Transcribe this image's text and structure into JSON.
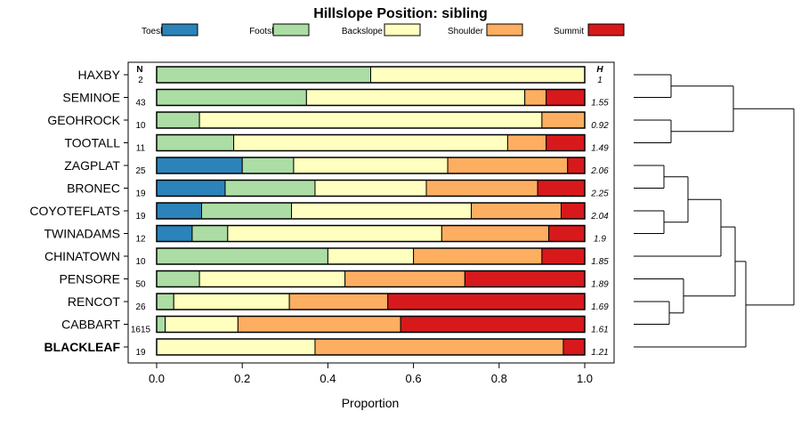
{
  "chart_data": {
    "type": "bar",
    "subtype": "stacked-horizontal-proportion",
    "title": "Hillslope Position: sibling",
    "xlabel": "Proportion",
    "ylabel": "",
    "xlim": [
      0,
      1
    ],
    "x_ticks": [
      "0.0",
      "0.2",
      "0.4",
      "0.6",
      "0.8",
      "1.0"
    ],
    "x_tick_values": [
      0.0,
      0.2,
      0.4,
      0.6,
      0.8,
      1.0
    ],
    "n_header": "N",
    "h_header": "H",
    "legend": [
      {
        "name": "Toeslope",
        "color": "#2b83ba"
      },
      {
        "name": "Footslope",
        "color": "#abdda4"
      },
      {
        "name": "Backslope",
        "color": "#ffffbf"
      },
      {
        "name": "Shoulder",
        "color": "#fdae61"
      },
      {
        "name": "Summit",
        "color": "#d7191c"
      }
    ],
    "categories": [
      "HAXBY",
      "SEMINOE",
      "GEOHROCK",
      "TOOTALL",
      "ZAGPLAT",
      "BRONEC",
      "COYOTEFLATS",
      "TWINADAMS",
      "CHINATOWN",
      "PENSORE",
      "RENCOT",
      "CABBART",
      "BLACKLEAF"
    ],
    "highlight": "BLACKLEAF",
    "n": [
      "2",
      "43",
      "10",
      "11",
      "25",
      "19",
      "19",
      "12",
      "10",
      "50",
      "26",
      "1615",
      "19"
    ],
    "h": [
      "1",
      "1.55",
      "0.92",
      "1.49",
      "2.06",
      "2.25",
      "2.04",
      "1.9",
      "1.85",
      "1.89",
      "1.69",
      "1.61",
      "1.21"
    ],
    "series": [
      {
        "name": "Toeslope",
        "values": [
          0,
          0,
          0,
          0,
          0.2,
          0.16,
          0.105,
          0.083,
          0,
          0,
          0,
          0,
          0
        ]
      },
      {
        "name": "Footslope",
        "values": [
          0.5,
          0.35,
          0.1,
          0.18,
          0.12,
          0.21,
          0.21,
          0.083,
          0.4,
          0.1,
          0.04,
          0.02,
          0
        ]
      },
      {
        "name": "Backslope",
        "values": [
          0.5,
          0.51,
          0.8,
          0.64,
          0.36,
          0.26,
          0.42,
          0.5,
          0.2,
          0.34,
          0.27,
          0.17,
          0.37
        ]
      },
      {
        "name": "Shoulder",
        "values": [
          0,
          0.05,
          0.1,
          0.09,
          0.28,
          0.26,
          0.21,
          0.25,
          0.3,
          0.28,
          0.23,
          0.38,
          0.58
        ]
      },
      {
        "name": "Summit",
        "values": [
          0,
          0.09,
          0,
          0.09,
          0.04,
          0.11,
          0.055,
          0.084,
          0.1,
          0.28,
          0.46,
          0.43,
          0.05
        ]
      }
    ],
    "dendrogram": "hierarchical clustering of the 13 siblings"
  }
}
